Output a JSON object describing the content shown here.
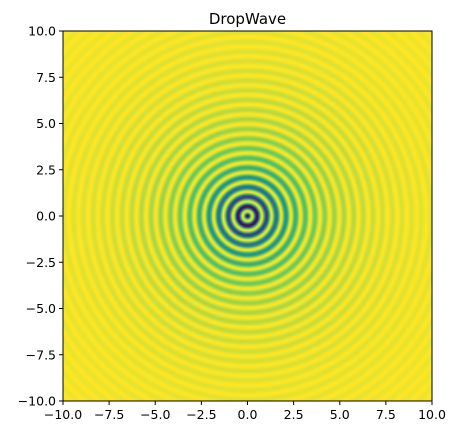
{
  "chart_data": {
    "type": "heatmap",
    "title": "DropWave",
    "xlabel": "",
    "ylabel": "",
    "function": "DropWave",
    "xlim": [
      -10,
      10
    ],
    "ylim": [
      -10,
      10
    ],
    "x_ticks": [
      -10.0,
      -7.5,
      -5.0,
      -2.5,
      0.0,
      2.5,
      5.0,
      7.5,
      10.0
    ],
    "y_ticks": [
      -10.0,
      -7.5,
      -5.0,
      -2.5,
      0.0,
      2.5,
      5.0,
      7.5,
      10.0
    ],
    "x_tick_labels": [
      "−10.0",
      "−7.5",
      "−5.0",
      "−2.5",
      "0.0",
      "2.5",
      "5.0",
      "7.5",
      "10.0"
    ],
    "y_tick_labels": [
      "10.0",
      "7.5",
      "5.0",
      "2.5",
      "0.0",
      "−2.5",
      "−5.0",
      "−7.5",
      "−10.0"
    ],
    "colormap": "viridis",
    "colormap_stops": [
      "#440154",
      "#3b528b",
      "#21918c",
      "#5ec962",
      "#fde725"
    ],
    "grid": false,
    "legend": "none"
  }
}
